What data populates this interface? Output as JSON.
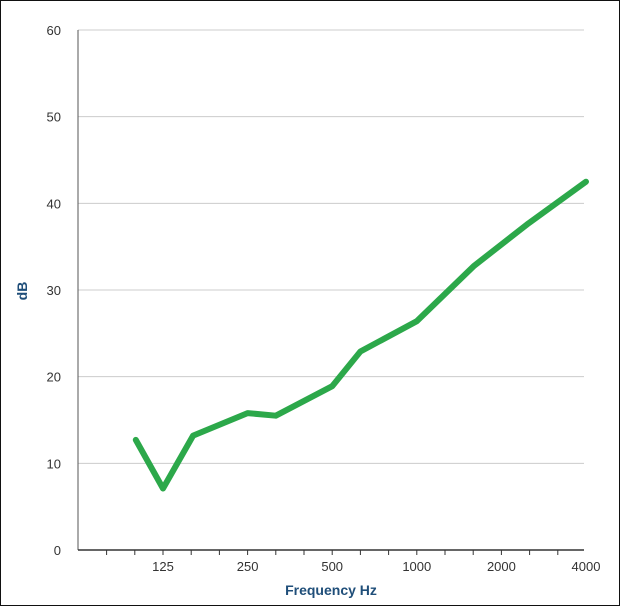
{
  "chart_data": {
    "type": "line",
    "title": "",
    "xlabel": "Frequency Hz",
    "ylabel": "dB",
    "x_scale": "log",
    "x": [
      100,
      125,
      160,
      250,
      315,
      500,
      630,
      1000,
      1600,
      2500,
      4000
    ],
    "series": [
      {
        "values": [
          12.7,
          7.1,
          13.2,
          15.8,
          15.5,
          18.9,
          22.9,
          26.4,
          32.8,
          37.7,
          42.5
        ]
      }
    ],
    "x_ticks": [
      "125",
      "250",
      "500",
      "1000",
      "2000",
      "4000"
    ],
    "y_ticks": [
      "0",
      "10",
      "20",
      "30",
      "40",
      "50",
      "60"
    ],
    "ylim": [
      0,
      60
    ],
    "grid": "horizontal",
    "legend": "none",
    "colors": {
      "line": "#2ca84a",
      "grid": "#cccccc",
      "axis_label": "#1f4e79"
    }
  }
}
